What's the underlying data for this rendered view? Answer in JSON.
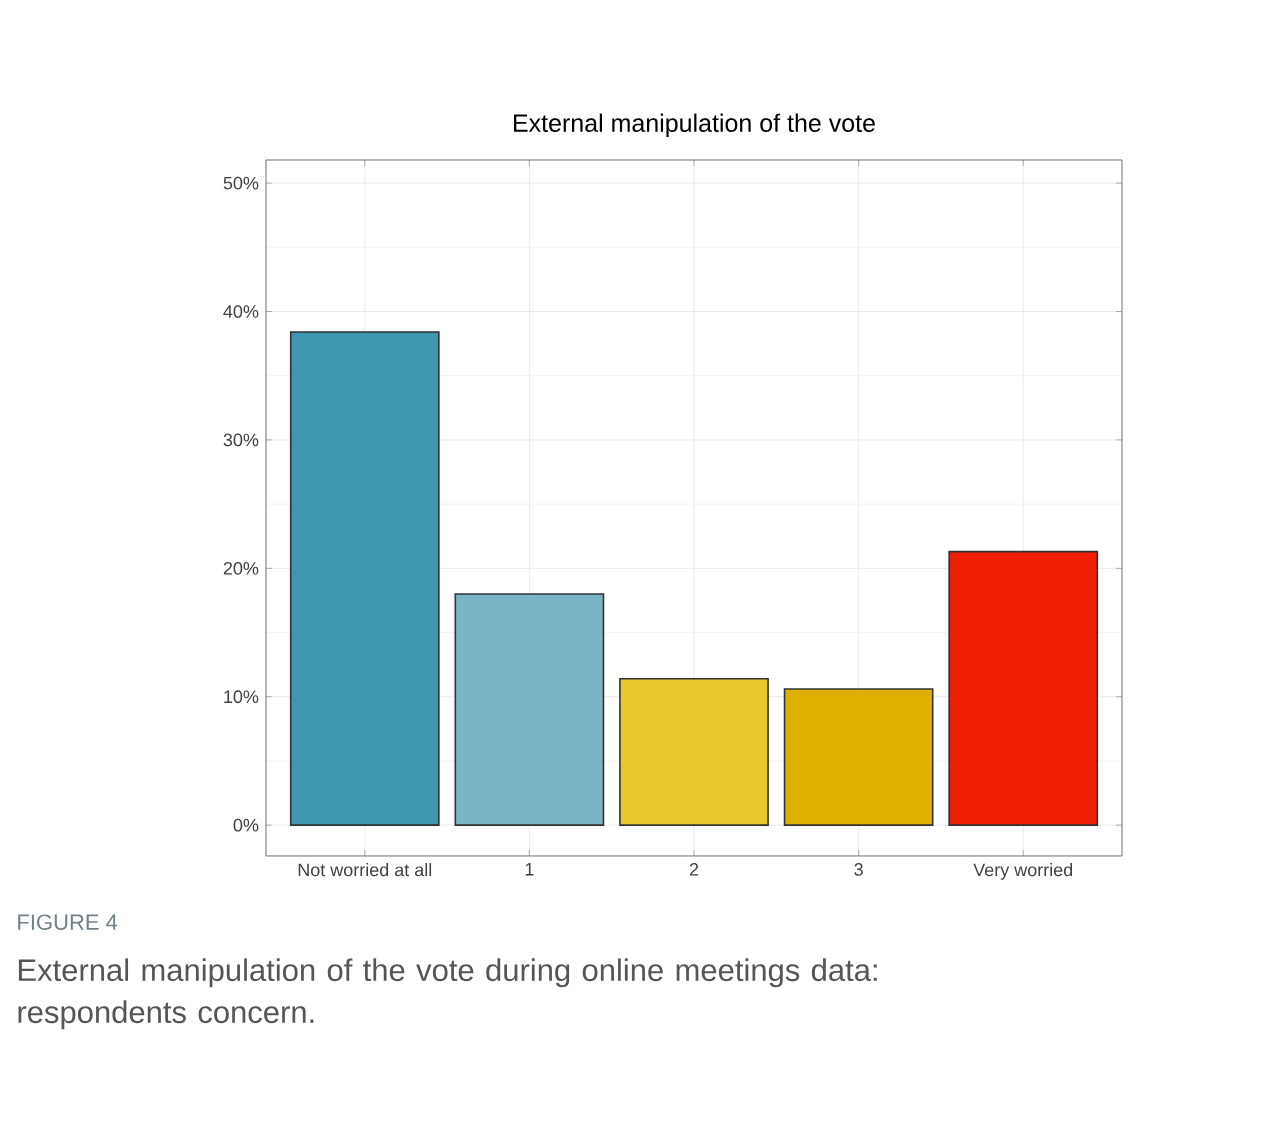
{
  "chart_data": {
    "type": "bar",
    "title": "External manipulation of the vote",
    "categories": [
      "Not worried at all",
      "1",
      "2",
      "3",
      "Very worried"
    ],
    "values": [
      38.4,
      18.0,
      11.4,
      10.6,
      21.3
    ],
    "colors": [
      "#3d97b1",
      "#79b5c6",
      "#e8c82a",
      "#e0b000",
      "#f01e00"
    ],
    "ylim": [
      -2.4,
      51.8
    ],
    "yticks": [
      {
        "value": 0,
        "label": "0%"
      },
      {
        "value": 10,
        "label": "10%"
      },
      {
        "value": 20,
        "label": "20%"
      },
      {
        "value": 30,
        "label": "30%"
      },
      {
        "value": 40,
        "label": "40%"
      },
      {
        "value": 50,
        "label": "50%"
      }
    ],
    "grid": true,
    "annotations": [
      "FIGURE 4",
      "External manipulation of the vote during online meetings data: respondents concern."
    ]
  }
}
